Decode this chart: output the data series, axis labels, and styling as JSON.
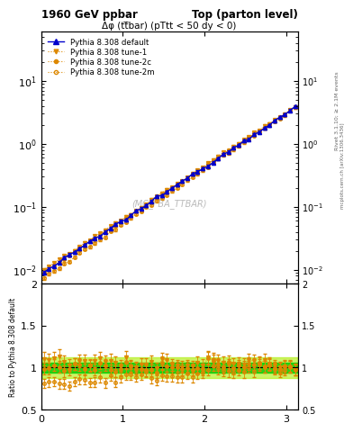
{
  "title_left": "1960 GeV ppbar",
  "title_right": "Top (parton level)",
  "subtitle": "Δφ (tt̅bar) (pTtt < 50 dy < 0)",
  "watermark": "(MC_FBA_TTBAR)",
  "right_label_top": "Rivet 3.1.10; ≥ 2.1M events",
  "right_label_bottom": "mcplots.cern.ch [arXiv:1306.3436]",
  "ylabel_ratio": "Ratio to Pythia 8.308 default",
  "ylim_main_log": [
    0.006,
    60
  ],
  "ylim_ratio": [
    0.5,
    2.0
  ],
  "xlim": [
    0,
    3.14159
  ],
  "xticks": [
    0,
    1,
    2,
    3
  ],
  "yticks_ratio": [
    0.5,
    1.0,
    1.5,
    2.0
  ],
  "legend_entries": [
    "Pythia 8.308 default",
    "Pythia 8.308 tune-1",
    "Pythia 8.308 tune-2c",
    "Pythia 8.308 tune-2m"
  ],
  "col_default": "#0000cc",
  "col_tune": "#dd8800",
  "bg_color": "#ffffff",
  "band_color_inner": "#00cc00",
  "band_color_outer": "#aaee00"
}
